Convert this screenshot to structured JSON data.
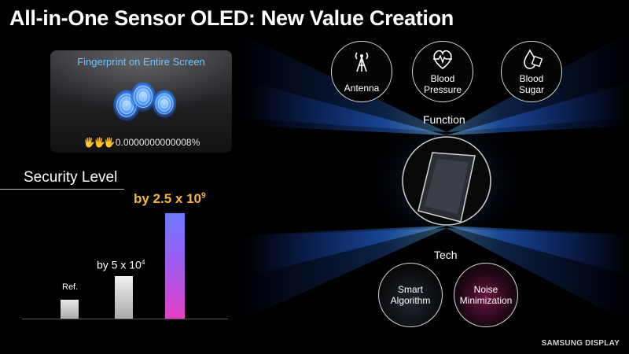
{
  "title": "All-in-One Sensor OLED: New Value Creation",
  "fingerprint": {
    "title": "Fingerprint on Entire Screen",
    "hand_glyphs": "🖐🖐🖐",
    "probability": "0.0000000000008%"
  },
  "security": {
    "title": "Security Level",
    "ref_label": "Ref.",
    "mid_label": "by 5 x 10",
    "mid_exp": "4",
    "top_label": "by 2.5 x 10",
    "top_exp": "9"
  },
  "function": {
    "label": "Function",
    "items": [
      {
        "icon": "antenna-icon",
        "label": "Antenna"
      },
      {
        "icon": "heart-pulse-icon",
        "label1": "Blood",
        "label2": "Pressure"
      },
      {
        "icon": "blood-drop-icon",
        "label1": "Blood",
        "label2": "Sugar"
      }
    ]
  },
  "tech": {
    "label": "Tech",
    "items": [
      {
        "label1": "Smart",
        "label2": "Algorithm"
      },
      {
        "label1": "Noise",
        "label2": "Minimization"
      }
    ]
  },
  "brand": "SAMSUNG DISPLAY",
  "colors": {
    "accent": "#f4b640",
    "fingerprint_glow": "#3a8dff",
    "bar_gradient_top": "#6a7bff",
    "bar_gradient_bottom": "#e53fc5"
  }
}
